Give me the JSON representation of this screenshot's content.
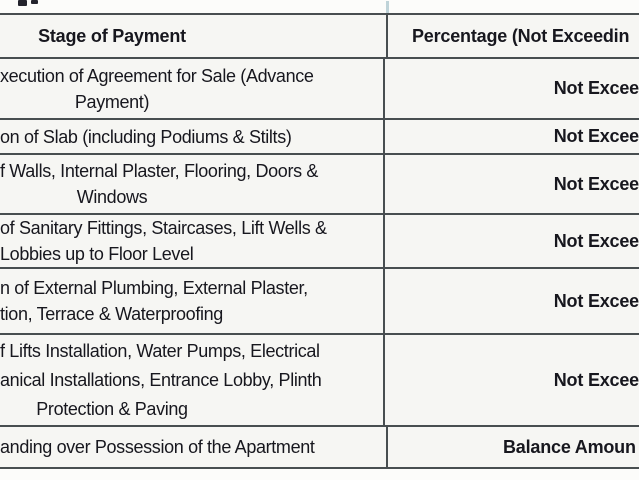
{
  "document": {
    "header": {
      "stage": "Stage of Payment",
      "percentage": "Percentage (Not Exceedin"
    },
    "rows": [
      {
        "stage_lines": [
          {
            "text": "xecution of Agreement for Sale (Advance",
            "cut": true
          },
          {
            "text": "Payment)",
            "cut": false
          }
        ],
        "percentage": "Not Excee",
        "percentage_type": "not-exceeding"
      },
      {
        "stage_lines": [
          {
            "text": "on of Slab (including Podiums & Stilts)",
            "cut": true
          }
        ],
        "percentage": "Not Excee",
        "percentage_type": "not-exceeding"
      },
      {
        "stage_lines": [
          {
            "text": "f Walls, Internal Plaster, Flooring, Doors &",
            "cut": true
          },
          {
            "text": "Windows",
            "cut": false
          }
        ],
        "percentage": "Not Excee",
        "percentage_type": "not-exceeding"
      },
      {
        "stage_lines": [
          {
            "text": "of Sanitary Fittings, Staircases, Lift Wells &",
            "cut": true
          },
          {
            "text": "Lobbies up to Floor Level",
            "cut": true
          }
        ],
        "percentage": "Not Excee",
        "percentage_type": "not-exceeding"
      },
      {
        "stage_lines": [
          {
            "text": "n of External Plumbing, External Plaster,",
            "cut": true
          },
          {
            "text": "tion, Terrace & Waterproofing",
            "cut": true
          }
        ],
        "percentage": "Not Excee",
        "percentage_type": "not-exceeding"
      },
      {
        "stage_lines": [
          {
            "text": "f Lifts Installation, Water Pumps, Electrical",
            "cut": true
          },
          {
            "text": "anical Installations, Entrance Lobby, Plinth",
            "cut": true
          },
          {
            "text": "Protection & Paving",
            "cut": false
          }
        ],
        "percentage": "Not Excee",
        "percentage_type": "not-exceeding"
      },
      {
        "stage_lines": [
          {
            "text": "anding over Possession of the Apartment",
            "cut": true
          }
        ],
        "percentage": "Balance Amoun",
        "percentage_type": "balance"
      }
    ],
    "colors": {
      "grid_line": "#484e50",
      "text": "#17171e",
      "cell_bg": "#f6f6f3",
      "page_bg": "#fcfcfa"
    }
  }
}
